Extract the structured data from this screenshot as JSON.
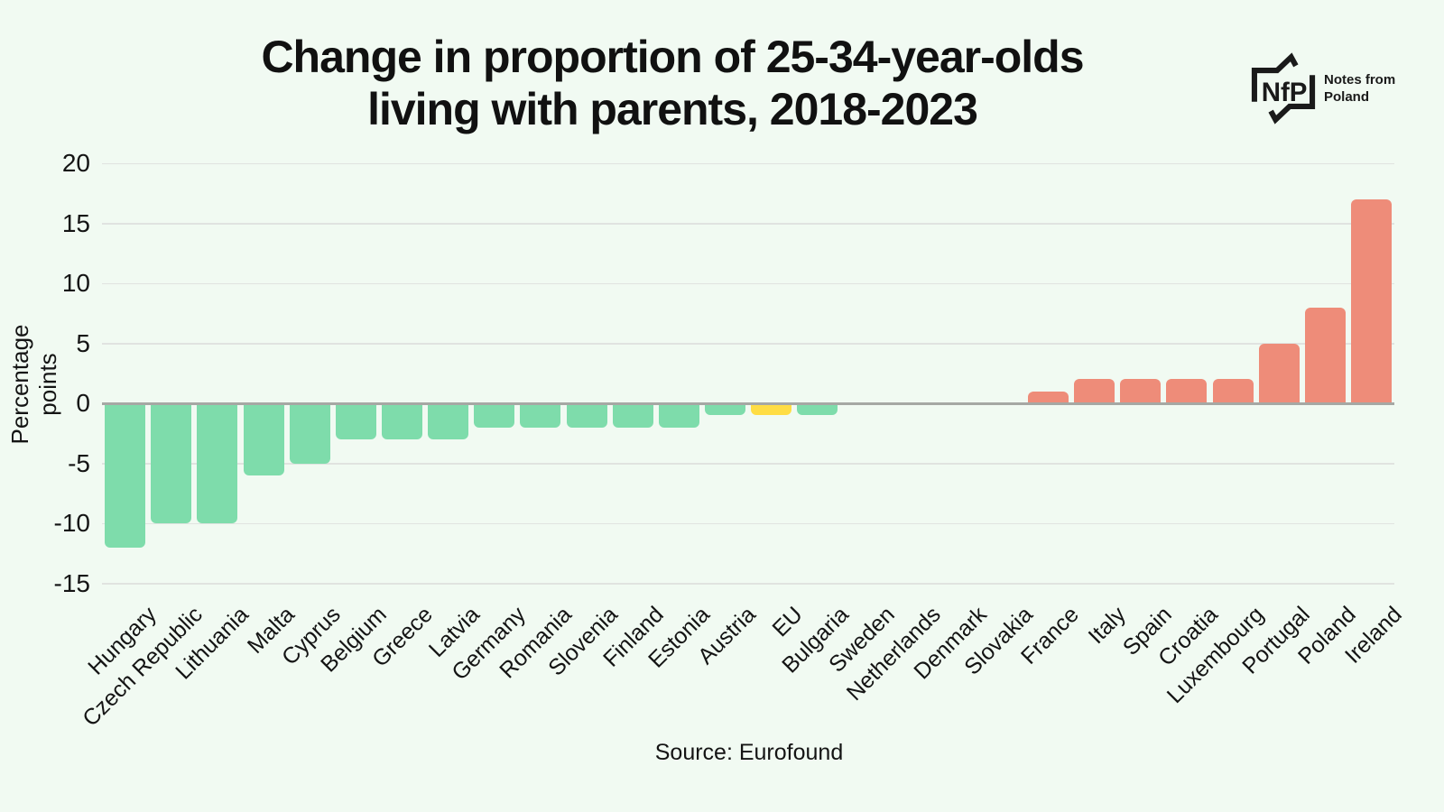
{
  "header": {
    "title_line1": "Change in proportion of 25-34-year-olds",
    "title_line2": "living with parents, 2018-2023"
  },
  "logo": {
    "abbr": "NfP",
    "tagline_line1": "Notes from",
    "tagline_line2": "Poland"
  },
  "footer": {
    "source": "Source: Eurofound"
  },
  "chart_data": {
    "type": "bar",
    "title": "Change in proportion of 25-34-year-olds living with parents, 2018-2023",
    "xlabel": "",
    "ylabel": "Percentage points",
    "ylim": [
      -15,
      20
    ],
    "yticks": [
      20,
      15,
      10,
      5,
      0,
      -5,
      -10,
      -15
    ],
    "grid": true,
    "legend_position": "none",
    "categories": [
      "Hungary",
      "Czech Republic",
      "Lithuania",
      "Malta",
      "Cyprus",
      "Belgium",
      "Greece",
      "Latvia",
      "Germany",
      "Romania",
      "Slovenia",
      "Finland",
      "Estonia",
      "Austria",
      "EU",
      "Bulgaria",
      "Sweden",
      "Netherlands",
      "Denmark",
      "Slovakia",
      "France",
      "Italy",
      "Spain",
      "Croatia",
      "Luxembourg",
      "Portugal",
      "Poland",
      "Ireland"
    ],
    "values": [
      -12,
      -10,
      -10,
      -6,
      -5,
      -3,
      -3,
      -3,
      -2,
      -2,
      -2,
      -2,
      -2,
      -1,
      -1,
      -1,
      0,
      0,
      0,
      0,
      1,
      2,
      2,
      2,
      2,
      5,
      8,
      17
    ],
    "highlight_category": "EU",
    "colors": {
      "negative_bar": "#7edcab",
      "positive_bar": "#ee8c79",
      "highlight_bar": "#ffdd44",
      "background": "#f1faf2",
      "gridline": "#e0e3e0",
      "zero_line": "#a6a8a4",
      "text": "#141414"
    }
  }
}
